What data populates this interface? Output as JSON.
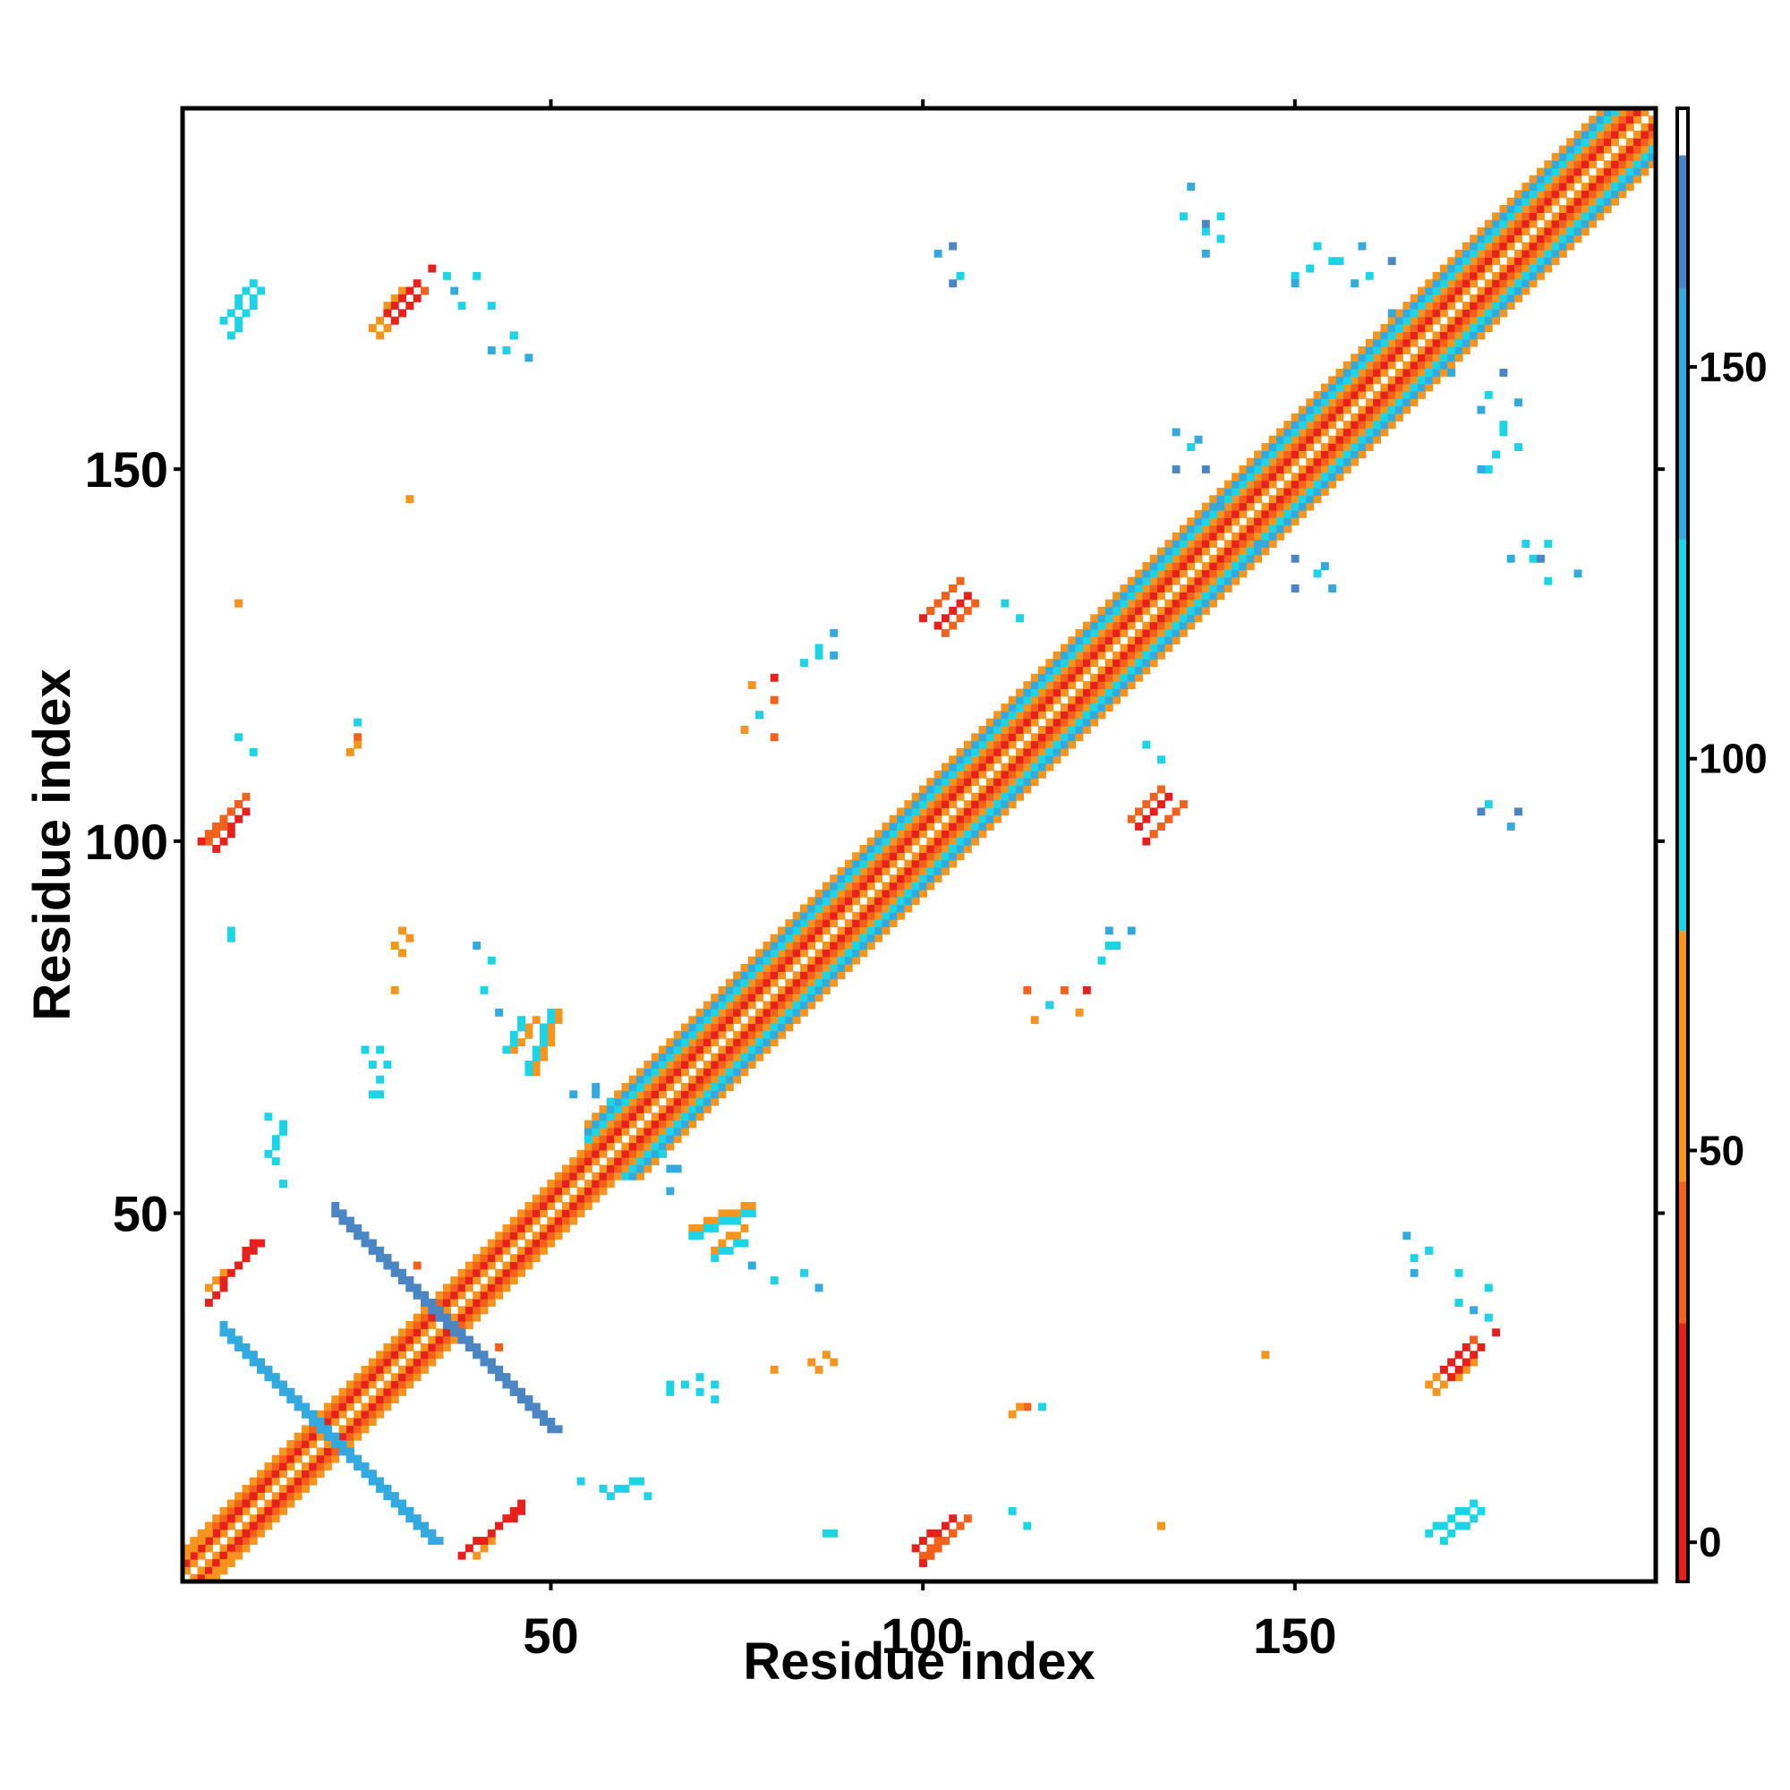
{
  "chart_data": {
    "type": "heatmap",
    "title": "",
    "xlabel": "Residue index",
    "ylabel": "Residue index",
    "xlim": [
      1,
      198
    ],
    "ylim": [
      1,
      198
    ],
    "x_ticks": [
      50,
      100,
      150
    ],
    "y_ticks": [
      50,
      100,
      150
    ],
    "grid": false,
    "colorbar": {
      "position": "right",
      "ticks": [
        0,
        50,
        100,
        150
      ],
      "range": [
        -5,
        183
      ],
      "bands": [
        {
          "from": -5,
          "to": 28,
          "color": "#e8201c"
        },
        {
          "from": 28,
          "to": 46,
          "color": "#f4611a"
        },
        {
          "from": 46,
          "to": 78,
          "color": "#f7941d"
        },
        {
          "from": 78,
          "to": 128,
          "color": "#1bd4e6"
        },
        {
          "from": 128,
          "to": 160,
          "color": "#33aadf"
        },
        {
          "from": 160,
          "to": 177,
          "color": "#4a86c4"
        },
        {
          "from": 177,
          "to": 183,
          "color": "#ffffff"
        }
      ]
    },
    "features": [
      {
        "kind": "diag_band",
        "note": "main diagonal, close-range contacts",
        "from": 1,
        "to": 198,
        "offsets": [
          {
            "k": 1,
            "color": "#f7941d"
          },
          {
            "k": 2,
            "color": "#e8201c"
          },
          {
            "k": 3,
            "color": "#f4611a"
          },
          {
            "k": 4,
            "color": "#f7941d"
          }
        ]
      },
      {
        "kind": "diag_band",
        "note": "helix-like cyan bands",
        "from": 55,
        "to": 195,
        "offsets": [
          {
            "k": 5,
            "color": "#1bd4e6"
          },
          {
            "k": 6,
            "color": "#33aadf"
          },
          {
            "k": 7,
            "color": "#f7941d"
          }
        ]
      },
      {
        "kind": "antidiag",
        "cx": 20,
        "cy": 20,
        "half": 14,
        "width": 2,
        "color": "#33aadf"
      },
      {
        "kind": "antidiag",
        "cx": 35,
        "cy": 36,
        "half": 14,
        "width": 2,
        "color": "#4a86c4"
      },
      {
        "kind": "stripe",
        "x0": 5,
        "y0": 3,
        "x1": 13,
        "y1": 11,
        "color": "#e8201c"
      },
      {
        "kind": "stripe",
        "x0": 4,
        "y0": 1,
        "x1": 7,
        "y1": 4,
        "color": "#f7941d"
      },
      {
        "kind": "stripe",
        "x0": 8,
        "y0": 43,
        "x1": 11,
        "y1": 46,
        "color": "#e8201c"
      },
      {
        "kind": "stripe",
        "x0": 4,
        "y0": 40,
        "x1": 6,
        "y1": 42,
        "color": "#f7941d"
      },
      {
        "kind": "stripe",
        "x0": 38,
        "y0": 4,
        "x1": 46,
        "y1": 10,
        "color": "#e8201c"
      },
      {
        "kind": "stripe",
        "x0": 5,
        "y0": 99,
        "x1": 9,
        "y1": 104,
        "color": "#e8201c"
      },
      {
        "kind": "stripe",
        "x0": 4,
        "y0": 100,
        "x1": 8,
        "y1": 105,
        "color": "#f4611a"
      },
      {
        "kind": "stripe",
        "x0": 100,
        "y0": 3,
        "x1": 105,
        "y1": 8,
        "color": "#e8201c"
      },
      {
        "kind": "stripe",
        "x0": 101,
        "y0": 4,
        "x1": 106,
        "y1": 9,
        "color": "#f4611a"
      },
      {
        "kind": "stripe",
        "x0": 102,
        "y0": 129,
        "x1": 106,
        "y1": 133,
        "color": "#e8201c"
      },
      {
        "kind": "stripe",
        "x0": 103,
        "y0": 128,
        "x1": 107,
        "y1": 132,
        "color": "#f4611a"
      },
      {
        "kind": "stripe",
        "x0": 130,
        "y0": 100,
        "x1": 134,
        "y1": 104,
        "color": "#e8201c"
      },
      {
        "kind": "stripe",
        "x0": 131,
        "y0": 101,
        "x1": 135,
        "y1": 105,
        "color": "#f4611a"
      },
      {
        "kind": "stripe",
        "x0": 26,
        "y0": 169,
        "x1": 30,
        "y1": 174,
        "color": "#f7941d"
      },
      {
        "kind": "stripe",
        "x0": 28,
        "y0": 171,
        "x1": 32,
        "y1": 175,
        "color": "#e8201c"
      },
      {
        "kind": "stripe",
        "x0": 6,
        "y0": 170,
        "x1": 10,
        "y1": 175,
        "color": "#1bd4e6"
      },
      {
        "kind": "stripe",
        "x0": 168,
        "y0": 27,
        "x1": 172,
        "y1": 31,
        "color": "#f7941d"
      },
      {
        "kind": "stripe",
        "x0": 170,
        "y0": 29,
        "x1": 174,
        "y1": 33,
        "color": "#e8201c"
      },
      {
        "kind": "stripe",
        "x0": 168,
        "y0": 7,
        "x1": 174,
        "y1": 11,
        "color": "#1bd4e6"
      },
      {
        "kind": "stripe",
        "x0": 12,
        "y0": 58,
        "x1": 14,
        "y1": 62,
        "color": "#1bd4e6"
      },
      {
        "kind": "stripe",
        "x0": 45,
        "y0": 72,
        "x1": 48,
        "y1": 76,
        "color": "#f7941d"
      },
      {
        "kind": "stripe",
        "x0": 44,
        "y0": 72,
        "x1": 46,
        "y1": 76,
        "color": "#1bd4e6"
      },
      {
        "kind": "stripe",
        "x0": 69,
        "y0": 48,
        "x1": 77,
        "y1": 51,
        "color": "#f7941d"
      },
      {
        "kind": "stripe",
        "x0": 69,
        "y0": 47,
        "x1": 77,
        "y1": 50,
        "color": "#1bd4e6"
      },
      {
        "kind": "points",
        "note": "scattered contacts",
        "cells": [
          [
            7,
            88,
            "#1bd4e6"
          ],
          [
            8,
            132,
            "#f7941d"
          ],
          [
            29,
            86,
            "#f7941d"
          ],
          [
            30,
            88,
            "#f7941d"
          ],
          [
            25,
            72,
            "#1bd4e6"
          ],
          [
            26,
            70,
            "#1bd4e6"
          ],
          [
            27,
            68,
            "#1bd4e6"
          ],
          [
            26,
            66,
            "#1bd4e6"
          ],
          [
            23,
            112,
            "#f7941d"
          ],
          [
            24,
            114,
            "#f4611a"
          ],
          [
            36,
            176,
            "#1bd4e6"
          ],
          [
            37,
            174,
            "#33aadf"
          ],
          [
            38,
            172,
            "#1bd4e6"
          ],
          [
            45,
            168,
            "#33aadf"
          ],
          [
            44,
            166,
            "#1bd4e6"
          ],
          [
            42,
            166,
            "#33aadf"
          ],
          [
            40,
            86,
            "#33aadf"
          ],
          [
            42,
            84,
            "#1bd4e6"
          ],
          [
            53,
            66,
            "#33aadf"
          ],
          [
            56,
            67,
            "#33aadf"
          ],
          [
            65,
            58,
            "#1bd4e6"
          ],
          [
            66,
            56,
            "#33aadf"
          ],
          [
            77,
            43,
            "#33aadf"
          ],
          [
            80,
            41,
            "#1bd4e6"
          ],
          [
            85,
            30,
            "#f7941d"
          ],
          [
            87,
            31,
            "#f7941d"
          ],
          [
            66,
            27,
            "#1bd4e6"
          ],
          [
            70,
            28,
            "#1bd4e6"
          ],
          [
            72,
            27,
            "#1bd4e6"
          ],
          [
            80,
            29,
            "#f7941d"
          ],
          [
            54,
            14,
            "#1bd4e6"
          ],
          [
            57,
            13,
            "#1bd4e6"
          ],
          [
            63,
            12,
            "#1bd4e6"
          ],
          [
            87,
            7,
            "#1bd4e6"
          ],
          [
            112,
            10,
            "#1bd4e6"
          ],
          [
            114,
            8,
            "#1bd4e6"
          ],
          [
            113,
            24,
            "#f7941d"
          ],
          [
            116,
            24,
            "#1bd4e6"
          ],
          [
            132,
            8,
            "#f7941d"
          ],
          [
            76,
            115,
            "#f7941d"
          ],
          [
            78,
            117,
            "#f4611a"
          ],
          [
            80,
            114,
            "#f4611a"
          ],
          [
            84,
            124,
            "#1bd4e6"
          ],
          [
            86,
            125,
            "#1bd4e6"
          ],
          [
            88,
            125,
            "#33aadf"
          ],
          [
            104,
            180,
            "#4a86c4"
          ],
          [
            105,
            176,
            "#1bd4e6"
          ],
          [
            136,
            188,
            "#33aadf"
          ],
          [
            135,
            184,
            "#1bd4e6"
          ],
          [
            138,
            182,
            "#1bd4e6"
          ],
          [
            140,
            184,
            "#1bd4e6"
          ],
          [
            153,
            180,
            "#1bd4e6"
          ],
          [
            156,
            178,
            "#1bd4e6"
          ],
          [
            159,
            180,
            "#33aadf"
          ],
          [
            163,
            178,
            "#4a86c4"
          ],
          [
            160,
            176,
            "#1bd4e6"
          ],
          [
            150,
            176,
            "#1bd4e6"
          ],
          [
            166,
            171,
            "#1bd4e6"
          ],
          [
            171,
            163,
            "#33aadf"
          ],
          [
            175,
            158,
            "#33aadf"
          ],
          [
            178,
            155,
            "#1bd4e6"
          ],
          [
            177,
            152,
            "#1bd4e6"
          ],
          [
            175,
            150,
            "#33aadf"
          ],
          [
            134,
            155,
            "#33aadf"
          ],
          [
            136,
            153,
            "#1bd4e6"
          ],
          [
            134,
            150,
            "#4a86c4"
          ],
          [
            145,
            140,
            "#33aadf"
          ],
          [
            150,
            138,
            "#4a86c4"
          ],
          [
            154,
            137,
            "#33aadf"
          ],
          [
            181,
            140,
            "#1bd4e6"
          ],
          [
            179,
            138,
            "#33aadf"
          ],
          [
            183,
            138,
            "#4a86c4"
          ],
          [
            175,
            104,
            "#4a86c4"
          ],
          [
            179,
            102,
            "#33aadf"
          ],
          [
            165,
            47,
            "#33aadf"
          ],
          [
            168,
            45,
            "#1bd4e6"
          ],
          [
            172,
            42,
            "#1bd4e6"
          ],
          [
            176,
            40,
            "#1bd4e6"
          ],
          [
            174,
            33,
            "#f4611a"
          ],
          [
            177,
            34,
            "#e8201c"
          ],
          [
            126,
            86,
            "#1bd4e6"
          ],
          [
            128,
            88,
            "#33aadf"
          ],
          [
            119,
            80,
            "#f4611a"
          ],
          [
            122,
            80,
            "#e8201c"
          ],
          [
            117,
            78,
            "#1bd4e6"
          ],
          [
            121,
            77,
            "#f7941d"
          ],
          [
            130,
            113,
            "#1bd4e6"
          ],
          [
            132,
            111,
            "#1bd4e6"
          ],
          [
            31,
            146,
            "#f7941d"
          ],
          [
            32,
            43,
            "#f4611a"
          ]
        ]
      }
    ]
  }
}
